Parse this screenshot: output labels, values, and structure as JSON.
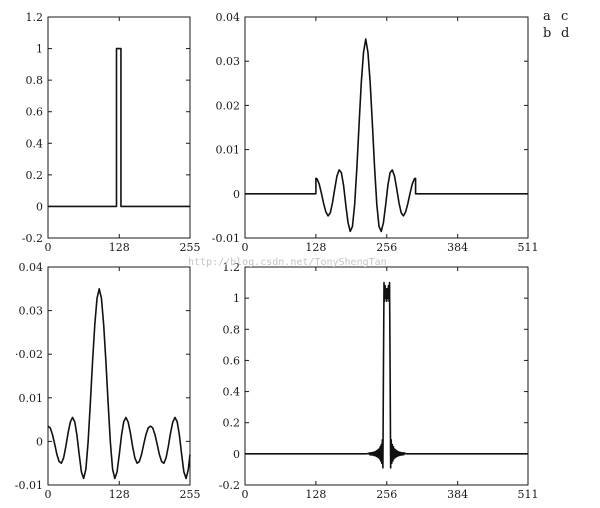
{
  "panel_letters": {
    "a": "a",
    "b": "b",
    "c": "c",
    "d": "d"
  },
  "watermark": "http://blog.csdn.net/TonyShengTan",
  "chart_data": [
    {
      "panel": "a",
      "type": "line",
      "title": "",
      "xlabel": "",
      "ylabel": "",
      "xlim": [
        0,
        255
      ],
      "ylim": [
        -0.2,
        1.2
      ],
      "xticks": [
        {
          "v": 0,
          "label": "0"
        },
        {
          "v": 128,
          "label": "128"
        },
        {
          "v": 255,
          "label": "255"
        }
      ],
      "yticks": [
        {
          "v": -0.2,
          "label": "-0.2"
        },
        {
          "v": 0,
          "label": "0"
        },
        {
          "v": 0.2,
          "label": "0.2"
        },
        {
          "v": 0.4,
          "label": "0.4"
        },
        {
          "v": 0.6,
          "label": "0.6"
        },
        {
          "v": 0.8,
          "label": "0.8"
        },
        {
          "v": 1.0,
          "label": "1"
        },
        {
          "v": 1.2,
          "label": "1.2"
        }
      ],
      "grid": false,
      "series": [
        {
          "values": [
            [
              0,
              0
            ],
            [
              123,
              0
            ],
            [
              123,
              1
            ],
            [
              131,
              1
            ],
            [
              131,
              0
            ],
            [
              255,
              0
            ]
          ]
        }
      ]
    },
    {
      "panel": "b",
      "type": "line",
      "title": "",
      "xlabel": "",
      "ylabel": "",
      "xlim": [
        0,
        511
      ],
      "ylim": [
        -0.01,
        0.04
      ],
      "xticks": [
        {
          "v": 0,
          "label": "0"
        },
        {
          "v": 128,
          "label": "128"
        },
        {
          "v": 256,
          "label": "256"
        },
        {
          "v": 384,
          "label": "384"
        },
        {
          "v": 511,
          "label": "511"
        }
      ],
      "yticks": [
        {
          "v": -0.01,
          "label": "-0.01"
        },
        {
          "v": 0,
          "label": "0"
        },
        {
          "v": 0.01,
          "label": "0.01"
        },
        {
          "v": 0.02,
          "label": "0.02"
        },
        {
          "v": 0.03,
          "label": "0.03"
        },
        {
          "v": 0.04,
          "label": "0.04"
        }
      ],
      "grid": false,
      "series": [
        {
          "values": [
            [
              0,
              0
            ],
            [
              128,
              0
            ],
            [
              128,
              0.0035
            ],
            [
              130,
              0.0034
            ],
            [
              134,
              0.0022
            ],
            [
              138,
              0.0001
            ],
            [
              142,
              -0.0022
            ],
            [
              146,
              -0.0041
            ],
            [
              150,
              -0.005
            ],
            [
              154,
              -0.0043
            ],
            [
              158,
              -0.002
            ],
            [
              162,
              0.0011
            ],
            [
              166,
              0.004
            ],
            [
              170,
              0.0054
            ],
            [
              174,
              0.0048
            ],
            [
              178,
              0.0019
            ],
            [
              182,
              -0.0025
            ],
            [
              186,
              -0.0065
            ],
            [
              190,
              -0.0085
            ],
            [
              194,
              -0.0074
            ],
            [
              198,
              -0.0024
            ],
            [
              202,
              0.0059
            ],
            [
              206,
              0.0158
            ],
            [
              210,
              0.0252
            ],
            [
              214,
              0.032
            ],
            [
              218,
              0.035
            ],
            [
              222,
              0.032
            ],
            [
              226,
              0.0252
            ],
            [
              230,
              0.0158
            ],
            [
              234,
              0.0059
            ],
            [
              238,
              -0.0024
            ],
            [
              242,
              -0.0074
            ],
            [
              246,
              -0.0085
            ],
            [
              250,
              -0.0065
            ],
            [
              254,
              -0.0025
            ],
            [
              258,
              0.0019
            ],
            [
              262,
              0.0048
            ],
            [
              266,
              0.0054
            ],
            [
              270,
              0.004
            ],
            [
              274,
              0.0011
            ],
            [
              278,
              -0.002
            ],
            [
              282,
              -0.0043
            ],
            [
              286,
              -0.005
            ],
            [
              290,
              -0.0041
            ],
            [
              294,
              -0.0022
            ],
            [
              298,
              0.0001
            ],
            [
              302,
              0.0022
            ],
            [
              306,
              0.0034
            ],
            [
              308,
              0.0035
            ],
            [
              308,
              0
            ],
            [
              511,
              0
            ]
          ]
        }
      ]
    },
    {
      "panel": "c",
      "type": "line",
      "title": "",
      "xlabel": "",
      "ylabel": "",
      "xlim": [
        0,
        255
      ],
      "ylim": [
        -0.01,
        0.04
      ],
      "xticks": [
        {
          "v": 0,
          "label": "0"
        },
        {
          "v": 128,
          "label": "128"
        },
        {
          "v": 255,
          "label": "255"
        }
      ],
      "yticks": [
        {
          "v": -0.01,
          "label": "-0.01"
        },
        {
          "v": 0,
          "label": "0"
        },
        {
          "v": 0.01,
          "label": "0.01"
        },
        {
          "v": 0.02,
          "label": "·0.02"
        },
        {
          "v": 0.03,
          "label": "0.03"
        },
        {
          "v": 0.04,
          "label": "0.04"
        }
      ],
      "grid": false,
      "series": [
        {
          "values": [
            [
              0,
              0.0035
            ],
            [
              4,
              0.0031
            ],
            [
              8,
              0.0016
            ],
            [
              12,
              -0.0006
            ],
            [
              16,
              -0.003
            ],
            [
              20,
              -0.0046
            ],
            [
              24,
              -0.005
            ],
            [
              28,
              -0.0038
            ],
            [
              32,
              -0.0012
            ],
            [
              36,
              0.0019
            ],
            [
              40,
              0.0044
            ],
            [
              44,
              0.0055
            ],
            [
              48,
              0.0045
            ],
            [
              52,
              0.0014
            ],
            [
              56,
              -0.003
            ],
            [
              60,
              -0.007
            ],
            [
              64,
              -0.0085
            ],
            [
              68,
              -0.0064
            ],
            [
              72,
              -0.0002
            ],
            [
              76,
              0.0087
            ],
            [
              80,
              0.0183
            ],
            [
              84,
              0.0267
            ],
            [
              88,
              0.0328
            ],
            [
              92,
              0.035
            ],
            [
              96,
              0.0328
            ],
            [
              100,
              0.0267
            ],
            [
              104,
              0.0183
            ],
            [
              108,
              0.0087
            ],
            [
              112,
              -0.0002
            ],
            [
              116,
              -0.0064
            ],
            [
              120,
              -0.0085
            ],
            [
              124,
              -0.007
            ],
            [
              128,
              -0.003
            ],
            [
              132,
              0.0014
            ],
            [
              136,
              0.0045
            ],
            [
              140,
              0.0055
            ],
            [
              144,
              0.0044
            ],
            [
              148,
              0.0019
            ],
            [
              152,
              -0.0012
            ],
            [
              156,
              -0.0038
            ],
            [
              160,
              -0.005
            ],
            [
              164,
              -0.0046
            ],
            [
              168,
              -0.003
            ],
            [
              172,
              -0.0006
            ],
            [
              176,
              0.0016
            ],
            [
              180,
              0.0031
            ],
            [
              184,
              0.0035
            ],
            [
              188,
              0.0031
            ],
            [
              192,
              0.0016
            ],
            [
              196,
              -0.0006
            ],
            [
              200,
              -0.003
            ],
            [
              204,
              -0.0046
            ],
            [
              208,
              -0.005
            ],
            [
              212,
              -0.0038
            ],
            [
              216,
              -0.0012
            ],
            [
              220,
              0.0019
            ],
            [
              224,
              0.0044
            ],
            [
              228,
              0.0055
            ],
            [
              232,
              0.0045
            ],
            [
              236,
              0.0014
            ],
            [
              240,
              -0.003
            ],
            [
              244,
              -0.007
            ],
            [
              248,
              -0.0085
            ],
            [
              252,
              -0.0064
            ],
            [
              255,
              -0.003
            ]
          ]
        }
      ]
    },
    {
      "panel": "d",
      "type": "line",
      "title": "",
      "xlabel": "",
      "ylabel": "",
      "xlim": [
        0,
        511
      ],
      "ylim": [
        -0.2,
        1.2
      ],
      "xticks": [
        {
          "v": 0,
          "label": "0"
        },
        {
          "v": 128,
          "label": "128"
        },
        {
          "v": 256,
          "label": "256"
        },
        {
          "v": 384,
          "label": "384"
        },
        {
          "v": 511,
          "label": "511"
        }
      ],
      "yticks": [
        {
          "v": -0.2,
          "label": "-0.2"
        },
        {
          "v": 0,
          "label": "0"
        },
        {
          "v": 0.2,
          "label": "0.2"
        },
        {
          "v": 0.4,
          "label": "0.4"
        },
        {
          "v": 0.6,
          "label": "0.6"
        },
        {
          "v": 0.8,
          "label": "0.8"
        },
        {
          "v": 1.0,
          "label": "1"
        },
        {
          "v": 1.2,
          "label": "1.2"
        }
      ],
      "grid": false,
      "series": [
        {
          "values": [
            [
              0,
              0
            ],
            [
              220,
              0
            ],
            [
              224,
              0.005
            ],
            [
              225,
              -0.005
            ],
            [
              226,
              0.006
            ],
            [
              227,
              -0.006
            ],
            [
              228,
              0.007
            ],
            [
              229,
              -0.007
            ],
            [
              230,
              0.008
            ],
            [
              231,
              -0.008
            ],
            [
              232,
              0.01
            ],
            [
              233,
              -0.01
            ],
            [
              234,
              0.012
            ],
            [
              235,
              -0.012
            ],
            [
              236,
              0.015
            ],
            [
              237,
              -0.015
            ],
            [
              238,
              0.02
            ],
            [
              239,
              -0.02
            ],
            [
              240,
              0.025
            ],
            [
              241,
              -0.025
            ],
            [
              242,
              0.032
            ],
            [
              243,
              -0.032
            ],
            [
              244,
              0.045
            ],
            [
              245,
              -0.045
            ],
            [
              246,
              0.06
            ],
            [
              247,
              -0.06
            ],
            [
              248,
              0.09
            ],
            [
              249,
              -0.09
            ],
            [
              250,
              0.55
            ],
            [
              251,
              1.1
            ],
            [
              252,
              0.98
            ],
            [
              253,
              1.08
            ],
            [
              254,
              1.0
            ],
            [
              255,
              1.06
            ],
            [
              256,
              0.98
            ],
            [
              257,
              1.06
            ],
            [
              258,
              1.0
            ],
            [
              259,
              1.08
            ],
            [
              260,
              0.98
            ],
            [
              261,
              1.1
            ],
            [
              262,
              0.55
            ],
            [
              263,
              -0.09
            ],
            [
              264,
              0.09
            ],
            [
              265,
              -0.06
            ],
            [
              266,
              0.06
            ],
            [
              267,
              -0.045
            ],
            [
              268,
              0.045
            ],
            [
              269,
              -0.032
            ],
            [
              270,
              0.032
            ],
            [
              271,
              -0.025
            ],
            [
              272,
              0.025
            ],
            [
              273,
              -0.02
            ],
            [
              274,
              0.02
            ],
            [
              275,
              -0.015
            ],
            [
              276,
              0.015
            ],
            [
              277,
              -0.012
            ],
            [
              278,
              0.012
            ],
            [
              279,
              -0.01
            ],
            [
              280,
              0.01
            ],
            [
              281,
              -0.008
            ],
            [
              282,
              0.008
            ],
            [
              283,
              -0.007
            ],
            [
              284,
              0.007
            ],
            [
              285,
              -0.006
            ],
            [
              286,
              0.006
            ],
            [
              287,
              -0.005
            ],
            [
              288,
              0.005
            ],
            [
              292,
              0
            ],
            [
              511,
              0
            ]
          ]
        }
      ]
    }
  ]
}
